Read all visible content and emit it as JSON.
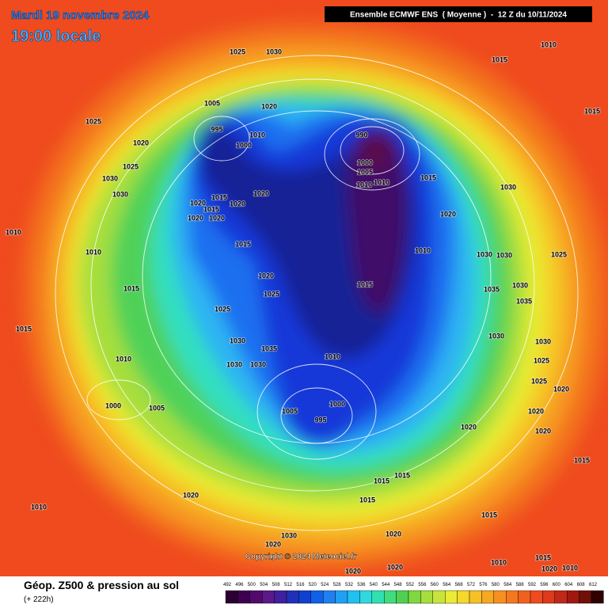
{
  "header": {
    "date": "Mardi 19 novembre 2024",
    "time": "19:00 locale",
    "model": "Ensemble ECMWF ENS  ( Moyenne )  -  12 Z du 10/11/2024"
  },
  "map": {
    "isobar_labels": [
      "1025",
      "1030",
      "1015",
      "1010",
      "1025",
      "1005",
      "1020",
      "1015",
      "1020",
      "995",
      "1010",
      "1000",
      "990",
      "1000",
      "1005",
      "1010",
      "1010",
      "1015",
      "1025",
      "1030",
      "1030",
      "1020",
      "1015",
      "1020",
      "1020",
      "1015",
      "1020",
      "1020",
      "1030",
      "1020",
      "1010",
      "1015",
      "1010",
      "1010",
      "1030",
      "1030",
      "1025",
      "1020",
      "1015",
      "1015",
      "1025",
      "1035",
      "1030",
      "1035",
      "1025",
      "1015",
      "1030",
      "1035",
      "1010",
      "1030",
      "1030",
      "1025",
      "1010",
      "1030",
      "1030",
      "1025",
      "1020",
      "1000",
      "1005",
      "1000",
      "1005",
      "995",
      "1020",
      "1020",
      "1020",
      "1015",
      "1020",
      "1015",
      "1015",
      "1015",
      "1010",
      "1015",
      "1020",
      "1020",
      "1010",
      "1020",
      "1020",
      "1015",
      "1020",
      "1010",
      "1030"
    ],
    "copyright": "Copyright © 2024 Meteociel.fr"
  },
  "footer": {
    "title": "Géop. Z500 & pression au sol",
    "lead": "(+ 222h)",
    "scale": [
      492,
      496,
      500,
      504,
      508,
      512,
      516,
      520,
      524,
      528,
      532,
      536,
      540,
      544,
      548,
      552,
      556,
      560,
      564,
      568,
      572,
      576,
      580,
      584,
      588,
      592,
      596,
      600,
      604,
      608,
      612
    ]
  }
}
